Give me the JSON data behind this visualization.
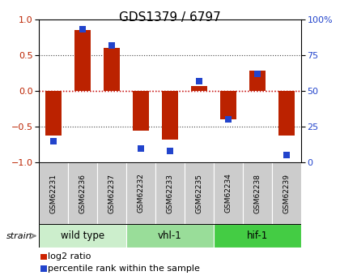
{
  "title": "GDS1379 / 6797",
  "samples": [
    "GSM62231",
    "GSM62236",
    "GSM62237",
    "GSM62232",
    "GSM62233",
    "GSM62235",
    "GSM62234",
    "GSM62238",
    "GSM62239"
  ],
  "log2_ratio": [
    -0.62,
    0.85,
    0.6,
    -0.55,
    -0.68,
    0.07,
    -0.4,
    0.28,
    -0.62
  ],
  "percentile_rank": [
    15,
    93,
    82,
    10,
    8,
    57,
    30,
    62,
    5
  ],
  "groups": [
    {
      "label": "wild type",
      "start": 0,
      "end": 3,
      "color": "#cceecc"
    },
    {
      "label": "vhl-1",
      "start": 3,
      "end": 6,
      "color": "#99dd99"
    },
    {
      "label": "hif-1",
      "start": 6,
      "end": 9,
      "color": "#44cc44"
    }
  ],
  "bar_color": "#bb2200",
  "dot_color": "#2244cc",
  "bar_width": 0.55,
  "dot_size": 35,
  "ylim_left": [
    -1,
    1
  ],
  "ylim_right": [
    0,
    100
  ],
  "yticks_left": [
    -1,
    -0.5,
    0,
    0.5,
    1
  ],
  "yticks_right": [
    0,
    25,
    50,
    75,
    100
  ],
  "hline_color": "#cc2222",
  "grid_color": "#444444",
  "background_color": "#ffffff",
  "plot_bg": "#ffffff",
  "sample_box_color": "#cccccc",
  "legend_red": "#cc2200",
  "legend_blue": "#2244cc"
}
